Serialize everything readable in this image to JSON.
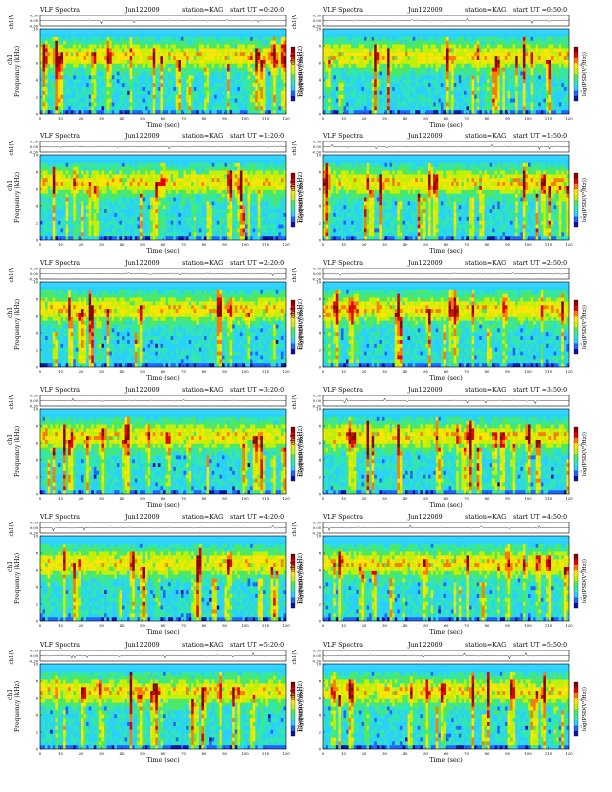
{
  "page": {
    "background": "#ffffff"
  },
  "panel_text": {
    "title_prefix": "VLF Spectra",
    "station": "station=KAG",
    "ch_axis_label": "ch1(V)",
    "freq_axis_label": "Frequency (kHz)",
    "channel_label": "ch1",
    "time_axis_label": "Time (sec)",
    "colorbar_label": "log(PSD(V²/Hz))"
  },
  "chart_data": [
    {
      "type": "heatmap",
      "title_date": "Jun122009",
      "start_ut": "start UT =0:20:0",
      "xlim": [
        0,
        120
      ],
      "ylim": [
        0,
        10
      ],
      "seed": 11
    },
    {
      "type": "heatmap",
      "title_date": "Jun122009",
      "start_ut": "start UT =0:50:0",
      "xlim": [
        0,
        120
      ],
      "ylim": [
        0,
        10
      ],
      "seed": 23
    },
    {
      "type": "heatmap",
      "title_date": "Jun122009",
      "start_ut": "start UT =1:20:0",
      "xlim": [
        0,
        120
      ],
      "ylim": [
        0,
        10
      ],
      "seed": 37
    },
    {
      "type": "heatmap",
      "title_date": "Jun122009",
      "start_ut": "start UT =1:50:0",
      "xlim": [
        0,
        120
      ],
      "ylim": [
        0,
        10
      ],
      "seed": 41
    },
    {
      "type": "heatmap",
      "title_date": "Jun122009",
      "start_ut": "start UT =2:20:0",
      "xlim": [
        0,
        120
      ],
      "ylim": [
        0,
        10
      ],
      "seed": 53
    },
    {
      "type": "heatmap",
      "title_date": "Jun122009",
      "start_ut": "start UT =2:50:0",
      "xlim": [
        0,
        120
      ],
      "ylim": [
        0,
        10
      ],
      "seed": 67
    },
    {
      "type": "heatmap",
      "title_date": "Jun122009",
      "start_ut": "start UT =3:20:0",
      "xlim": [
        0,
        120
      ],
      "ylim": [
        0,
        10
      ],
      "seed": 71
    },
    {
      "type": "heatmap",
      "title_date": "Jun122009",
      "start_ut": "start UT =3:50:0",
      "xlim": [
        0,
        120
      ],
      "ylim": [
        0,
        10
      ],
      "seed": 83
    },
    {
      "type": "heatmap",
      "title_date": "Jun122009",
      "start_ut": "start UT =4:20:0",
      "xlim": [
        0,
        120
      ],
      "ylim": [
        0,
        10
      ],
      "seed": 97
    },
    {
      "type": "heatmap",
      "title_date": "Jun122009",
      "start_ut": "start UT =4:50:0",
      "xlim": [
        0,
        120
      ],
      "ylim": [
        0,
        10
      ],
      "seed": 101
    },
    {
      "type": "heatmap",
      "title_date": "Jun122009",
      "start_ut": "start UT =5:20:0",
      "xlim": [
        0,
        120
      ],
      "ylim": [
        0,
        10
      ],
      "seed": 113
    },
    {
      "type": "heatmap",
      "title_date": "Jun122009",
      "start_ut": "start UT =5:50:0",
      "xlim": [
        0,
        120
      ],
      "ylim": [
        0,
        10
      ],
      "seed": 127
    }
  ],
  "axes": {
    "x_ticks": [
      0,
      10,
      20,
      30,
      40,
      50,
      60,
      70,
      80,
      90,
      100,
      110,
      120
    ],
    "x_tick_labels": [
      "0",
      "10",
      "20",
      "30",
      "40",
      "50",
      "60",
      "70",
      "80",
      "90",
      "100",
      "110",
      "120"
    ],
    "y_ticks": [
      0,
      2,
      4,
      6,
      8,
      10
    ],
    "y_tick_labels": [
      "0",
      "2",
      "4",
      "6",
      "8",
      "10"
    ],
    "ch_ticks": [
      -0.3,
      0.0,
      0.3
    ],
    "ch_tick_labels": [
      "-0.30",
      "0.00",
      "0.30"
    ],
    "colorbar_ticks": [
      -7,
      -4
    ],
    "colorbar_tick_labels": [
      "-7",
      "-4"
    ]
  },
  "colors": {
    "colormap": [
      "#0b12a8",
      "#1e63ff",
      "#2ad0ff",
      "#31e6b0",
      "#4fe860",
      "#c8f000",
      "#ffe600",
      "#ff7a00",
      "#e80000",
      "#8b0000"
    ],
    "band_cyan": "#33d4ff"
  }
}
